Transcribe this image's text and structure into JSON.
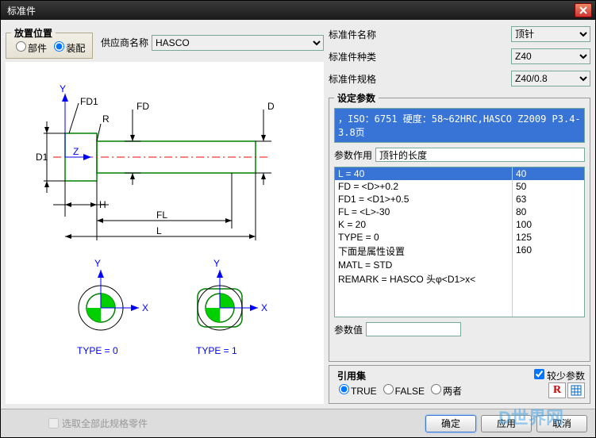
{
  "window": {
    "title": "标准件"
  },
  "placement": {
    "group_label": "放置位置",
    "opt_part": "部件",
    "opt_assembly": "装配",
    "selected": "assembly"
  },
  "supplier": {
    "label": "供应商名称",
    "value": "HASCO"
  },
  "name": {
    "label": "标准件名称",
    "value": "顶针"
  },
  "kind": {
    "label": "标准件种类",
    "value": "Z40"
  },
  "spec": {
    "label": "标准件规格",
    "value": "Z40/0.8"
  },
  "setparams": {
    "group_label": "设定参数",
    "info": "，ISO：6751 硬度：58~62HRC,HASCO Z2009 P3.4-3.8页",
    "role_label": "参数作用",
    "role_value": "顶针的长度",
    "params": [
      "L = 40",
      "FD = <D>+0.2",
      "FD1 = <D1>+0.5",
      "FL = <L>-30",
      "K = 20",
      "TYPE = 0",
      "下面是属性设置",
      "MATL = STD",
      "REMARK = HASCO 头φ<D1>x<"
    ],
    "selected_param_index": 0,
    "values": [
      "40",
      "50",
      "63",
      "80",
      "100",
      "125",
      "160"
    ],
    "selected_value_index": 0,
    "paramvalue_label": "参数值",
    "paramvalue": ""
  },
  "refset": {
    "group_label": "引用集",
    "opt_true": "TRUE",
    "opt_false": "FALSE",
    "opt_both": "两者",
    "selected": "true",
    "less_label": "较少参数",
    "less_checked": true
  },
  "footer": {
    "selectall_label": "选取全部此规格零件",
    "ok": "确定",
    "apply": "应用",
    "cancel": "取消"
  },
  "diagram": {
    "labels": {
      "Y": "Y",
      "X": "X",
      "Z": "Z",
      "FD1": "FD1",
      "FD": "FD",
      "R": "R",
      "D": "D",
      "D1": "D1",
      "H": "H",
      "FL": "FL",
      "L": "L",
      "type0": "TYPE = 0",
      "type1": "TYPE = 1"
    },
    "colors": {
      "outline": "#008000",
      "axis": "#0000ff",
      "center": "#ff0000",
      "dim": "#000000",
      "text": "#0000ff",
      "fill": "#00d000",
      "bg": "#ffffff"
    }
  },
  "watermark": "D世界网"
}
